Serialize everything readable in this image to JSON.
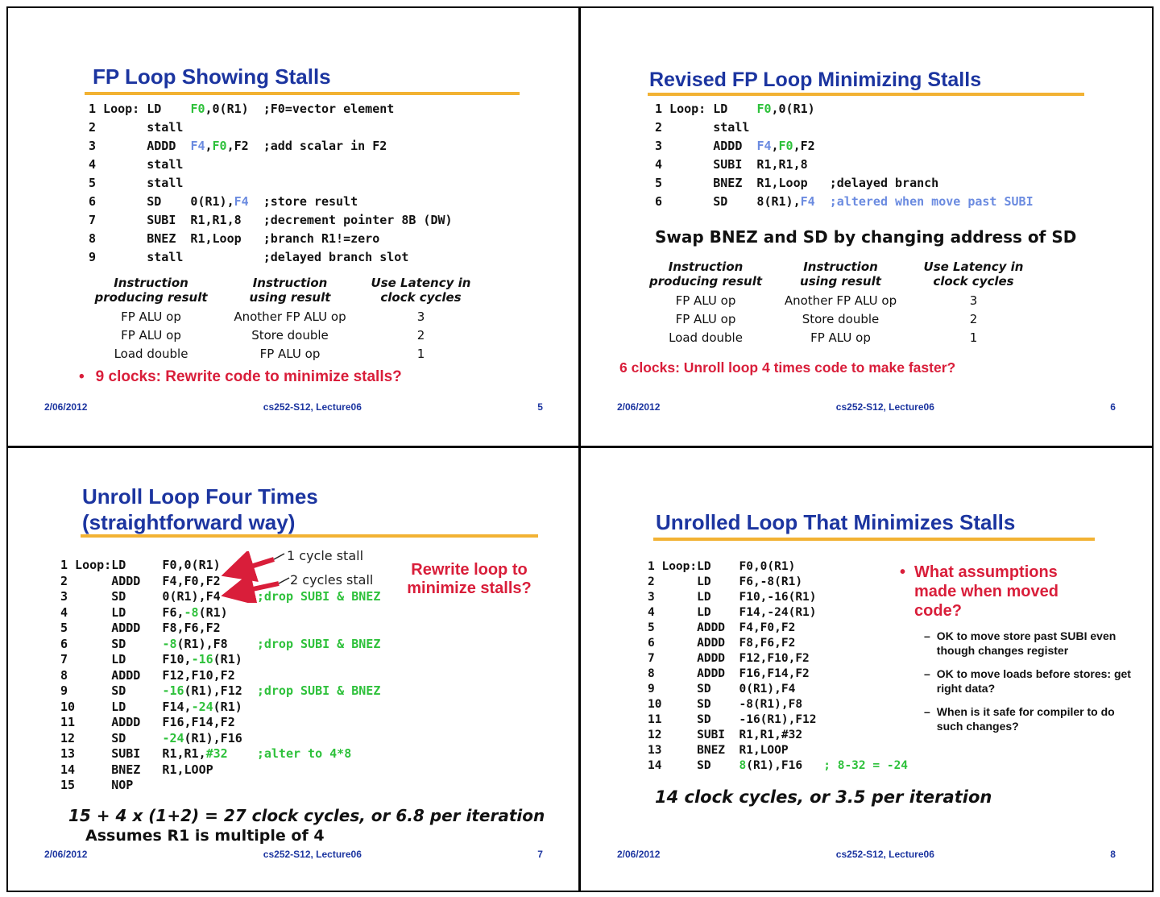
{
  "footer": {
    "date": "2/06/2012",
    "course": "cs252-S12, Lecture06"
  },
  "slides": {
    "s5": {
      "title": "FP Loop Showing Stalls",
      "page": "5",
      "code": [
        [
          [
            "1 Loop: LD    ",
            "k"
          ],
          [
            "F0",
            "g"
          ],
          [
            ",0(R1)  ;F0=vector element",
            "k"
          ]
        ],
        [
          [
            "2       stall",
            "k"
          ]
        ],
        [
          [
            "3       ADDD  ",
            "k"
          ],
          [
            "F4",
            "b"
          ],
          [
            ",",
            "k"
          ],
          [
            "F0",
            "g"
          ],
          [
            ",F2  ;add scalar in F2",
            "k"
          ]
        ],
        [
          [
            "4       stall",
            "k"
          ]
        ],
        [
          [
            "5       stall",
            "k"
          ]
        ],
        [
          [
            "6       SD    0(R1),",
            "k"
          ],
          [
            "F4",
            "b"
          ],
          [
            "  ;store result",
            "k"
          ]
        ],
        [
          [
            "7       SUBI  R1,R1,8   ;decrement pointer 8B (DW)",
            "k"
          ]
        ],
        [
          [
            "8       BNEZ  R1,Loop   ;branch R1!=zero",
            "k"
          ]
        ],
        [
          [
            "9       stall           ;delayed branch slot",
            "k"
          ]
        ]
      ],
      "table": {
        "headers": [
          "Instruction\nproducing result",
          "Instruction\nusing result",
          "Use Latency in\nclock cycles"
        ],
        "rows": [
          [
            "FP ALU op",
            "Another FP ALU op",
            "3"
          ],
          [
            "FP ALU op",
            "Store double",
            "2"
          ],
          [
            "Load double",
            "FP ALU op",
            "1"
          ]
        ]
      },
      "bullet": "•",
      "note": "9 clocks: Rewrite code to minimize stalls?"
    },
    "s6": {
      "title": "Revised FP Loop Minimizing Stalls",
      "page": "6",
      "code": [
        [
          [
            "1 Loop: LD    ",
            "k"
          ],
          [
            "F0",
            "g"
          ],
          [
            ",0(R1)",
            "k"
          ]
        ],
        [
          [
            "2       stall",
            "k"
          ]
        ],
        [
          [
            "3       ADDD  ",
            "k"
          ],
          [
            "F4",
            "b"
          ],
          [
            ",",
            "k"
          ],
          [
            "F0",
            "g"
          ],
          [
            ",F2",
            "k"
          ]
        ],
        [
          [
            "4       SUBI  R1,R1,8",
            "k"
          ]
        ],
        [
          [
            "5       BNEZ  R1,Loop   ;delayed branch",
            "k"
          ]
        ],
        [
          [
            "6       SD    8(R1),",
            "k"
          ],
          [
            "F4",
            "b"
          ],
          [
            "  ",
            "k"
          ],
          [
            ";altered when move past SUBI",
            "b"
          ]
        ]
      ],
      "swap_note": "Swap BNEZ and SD by changing address of SD",
      "table": {
        "headers": [
          "Instruction\nproducing result",
          "Instruction\nusing result",
          "Use Latency in\nclock cycles"
        ],
        "rows": [
          [
            "FP ALU op",
            "Another FP ALU op",
            "3"
          ],
          [
            "FP ALU op",
            "Store double",
            "2"
          ],
          [
            "Load double",
            "FP ALU op",
            "1"
          ]
        ]
      },
      "note": "6 clocks: Unroll loop 4 times code to make  faster?"
    },
    "s7": {
      "title": "Unroll Loop Four Times\n(straightforward way)",
      "page": "7",
      "code": [
        [
          [
            "1 Loop:LD     F0,0(R1)",
            "k"
          ]
        ],
        [
          [
            "2      ADDD   F4,F0,F2",
            "k"
          ]
        ],
        [
          [
            "3      SD     0(R1),F4     ",
            "k"
          ],
          [
            ";drop SUBI & BNEZ",
            "g"
          ]
        ],
        [
          [
            "4      LD     F6,",
            "k"
          ],
          [
            "-8",
            "g"
          ],
          [
            "(R1)",
            "k"
          ]
        ],
        [
          [
            "5      ADDD   F8,F6,F2",
            "k"
          ]
        ],
        [
          [
            "6      SD     ",
            "k"
          ],
          [
            "-8",
            "g"
          ],
          [
            "(R1),F8    ",
            "k"
          ],
          [
            ";drop SUBI & BNEZ",
            "g"
          ]
        ],
        [
          [
            "7      LD     F10,",
            "k"
          ],
          [
            "-16",
            "g"
          ],
          [
            "(R1)",
            "k"
          ]
        ],
        [
          [
            "8      ADDD   F12,F10,F2",
            "k"
          ]
        ],
        [
          [
            "9      SD     ",
            "k"
          ],
          [
            "-16",
            "g"
          ],
          [
            "(R1),F12  ",
            "k"
          ],
          [
            ";drop SUBI & BNEZ",
            "g"
          ]
        ],
        [
          [
            "10     LD     F14,",
            "k"
          ],
          [
            "-24",
            "g"
          ],
          [
            "(R1)",
            "k"
          ]
        ],
        [
          [
            "11     ADDD   F16,F14,F2",
            "k"
          ]
        ],
        [
          [
            "12     SD     ",
            "k"
          ],
          [
            "-24",
            "g"
          ],
          [
            "(R1),F16",
            "k"
          ]
        ],
        [
          [
            "13     SUBI   R1,R1,",
            "k"
          ],
          [
            "#32",
            "g"
          ],
          [
            "    ",
            "k"
          ],
          [
            ";alter to 4*8",
            "g"
          ]
        ],
        [
          [
            "14     BNEZ   R1,LOOP",
            "k"
          ]
        ],
        [
          [
            "15     NOP",
            "k"
          ]
        ]
      ],
      "stall_label_1": "1 cycle stall",
      "stall_label_2": "2 cycles stall",
      "rewrite_note": "Rewrite loop to\nminimize stalls?",
      "summary_1": "15 + 4 x (1+2) = 27 clock cycles, or 6.8 per iteration",
      "summary_2": "Assumes R1 is multiple of 4"
    },
    "s8": {
      "title": "Unrolled Loop That Minimizes Stalls",
      "page": "8",
      "code": [
        [
          [
            "1 Loop:LD    F0,0(R1)",
            "k"
          ]
        ],
        [
          [
            "2      LD    F6,-8(R1)",
            "k"
          ]
        ],
        [
          [
            "3      LD    F10,-16(R1)",
            "k"
          ]
        ],
        [
          [
            "4      LD    F14,-24(R1)",
            "k"
          ]
        ],
        [
          [
            "5      ADDD  F4,F0,F2",
            "k"
          ]
        ],
        [
          [
            "6      ADDD  F8,F6,F2",
            "k"
          ]
        ],
        [
          [
            "7      ADDD  F12,F10,F2",
            "k"
          ]
        ],
        [
          [
            "8      ADDD  F16,F14,F2",
            "k"
          ]
        ],
        [
          [
            "9      SD    0(R1),F4",
            "k"
          ]
        ],
        [
          [
            "10     SD    -8(R1),F8",
            "k"
          ]
        ],
        [
          [
            "11     SD    -16(R1),F12",
            "k"
          ]
        ],
        [
          [
            "12     SUBI  R1,R1,#32",
            "k"
          ]
        ],
        [
          [
            "13     BNEZ  R1,LOOP",
            "k"
          ]
        ],
        [
          [
            "14     SD    ",
            "k"
          ],
          [
            "8",
            "g"
          ],
          [
            "(R1),F16   ",
            "k"
          ],
          [
            "; 8-32 = -24",
            "g"
          ]
        ]
      ],
      "bullet": "•",
      "dash": "–",
      "question": "What assumptions made when moved code?",
      "points": [
        "OK to move store past SUBI even though changes register",
        "OK to move loads before stores: get right data?",
        "When is it safe for compiler to do such changes?"
      ],
      "summary": "14 clock cycles, or 3.5 per iteration"
    }
  }
}
